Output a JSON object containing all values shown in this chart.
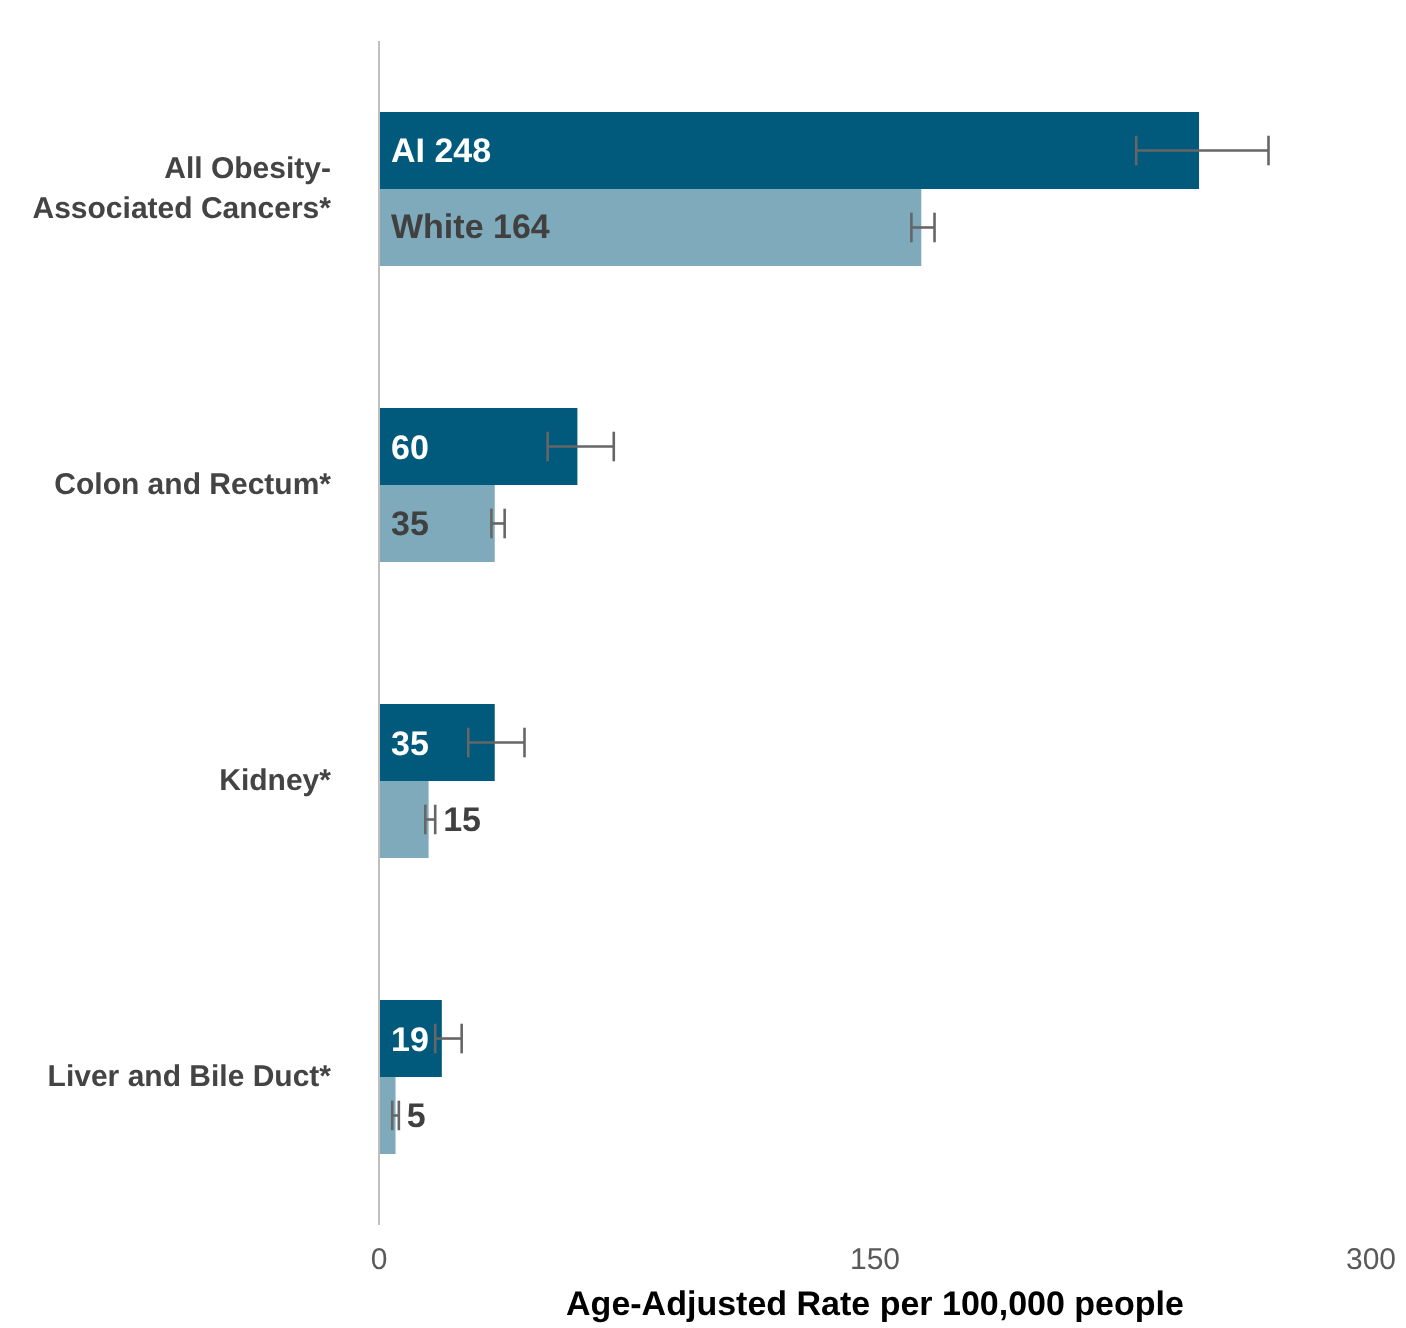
{
  "chart_data": {
    "type": "bar",
    "orientation": "horizontal",
    "xlabel": "Age-Adjusted Rate per 100,000 people",
    "categories": [
      "All Obesity-Associated Cancers*",
      "Colon and Rectum*",
      "Kidney*",
      "Liver and Bile Duct*"
    ],
    "series": [
      {
        "color": "#015a7b",
        "values": [
          248,
          60,
          35,
          19
        ],
        "errors": [
          [
            229,
            269
          ],
          [
            51,
            71
          ],
          [
            27,
            44
          ],
          [
            17,
            25
          ]
        ],
        "value_labels": [
          "AI 248",
          "60",
          "35",
          "19"
        ]
      },
      {
        "color": "#7eaabb",
        "values": [
          164,
          35,
          15,
          5
        ],
        "errors": [
          [
            161,
            168
          ],
          [
            34,
            38
          ],
          [
            14,
            17
          ],
          [
            4,
            6
          ]
        ],
        "value_labels": [
          "White 164",
          "35",
          "15",
          "5"
        ]
      }
    ],
    "xlim": [
      0,
      300
    ],
    "xticks": [
      0,
      150,
      300
    ],
    "grid": false
  }
}
